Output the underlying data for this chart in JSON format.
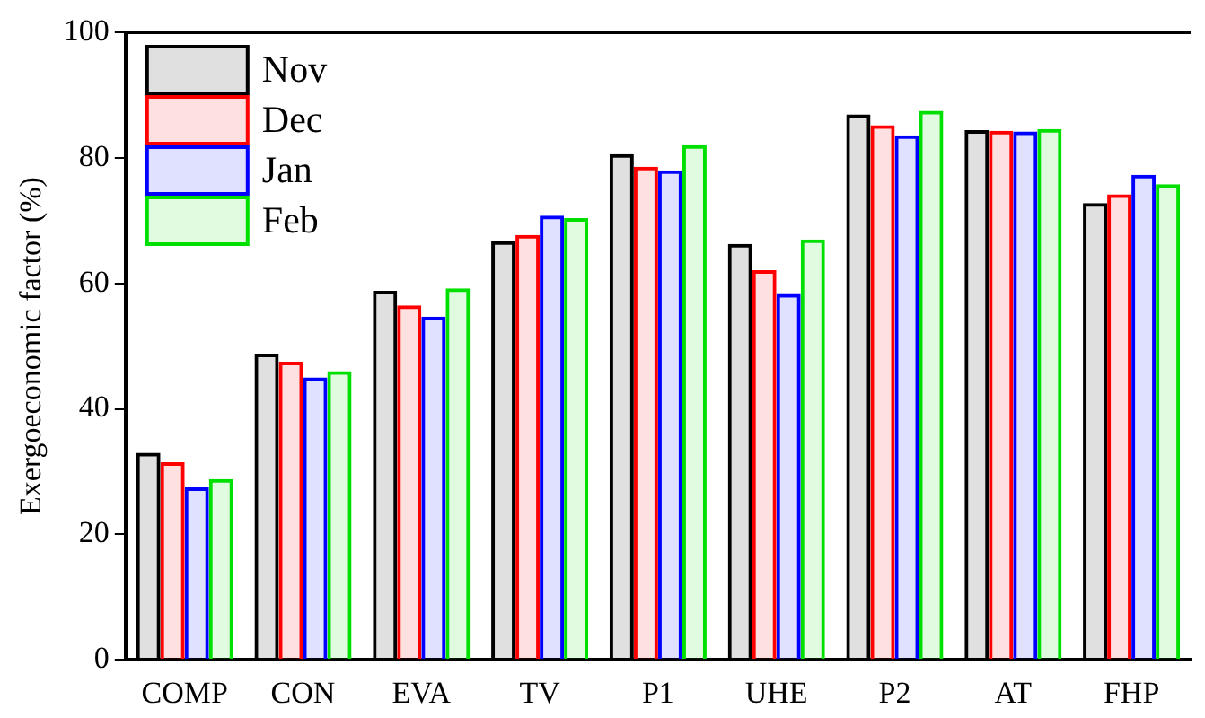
{
  "chart_data": {
    "type": "bar",
    "ylabel": "Exergoeconomic factor (%)",
    "categories": [
      "COMP",
      "CON",
      "EVA",
      "TV",
      "P1",
      "UHE",
      "P2",
      "AT",
      "FHP"
    ],
    "series": [
      {
        "name": "Nov",
        "color": "#000000",
        "values": [
          33,
          48.8,
          58.8,
          66.7,
          80.6,
          66.3,
          86.9,
          84.4,
          72.8
        ]
      },
      {
        "name": "Dec",
        "color": "#ff0000",
        "values": [
          31.5,
          47.5,
          56.5,
          67.7,
          78.6,
          62.1,
          85.2,
          84.3,
          74.2
        ]
      },
      {
        "name": "Jan",
        "color": "#0000ff",
        "values": [
          27.5,
          45,
          54.7,
          70.8,
          78,
          58.3,
          83.6,
          84.2,
          77.3
        ]
      },
      {
        "name": "Feb",
        "color": "#00e000",
        "values": [
          28.8,
          46,
          59.2,
          70.4,
          82,
          67,
          87.5,
          84.6,
          75.8
        ]
      }
    ],
    "ylim": [
      0,
      100
    ],
    "yticks": [
      0,
      20,
      40,
      60,
      80,
      100
    ],
    "grid": false,
    "legend": "top left"
  }
}
